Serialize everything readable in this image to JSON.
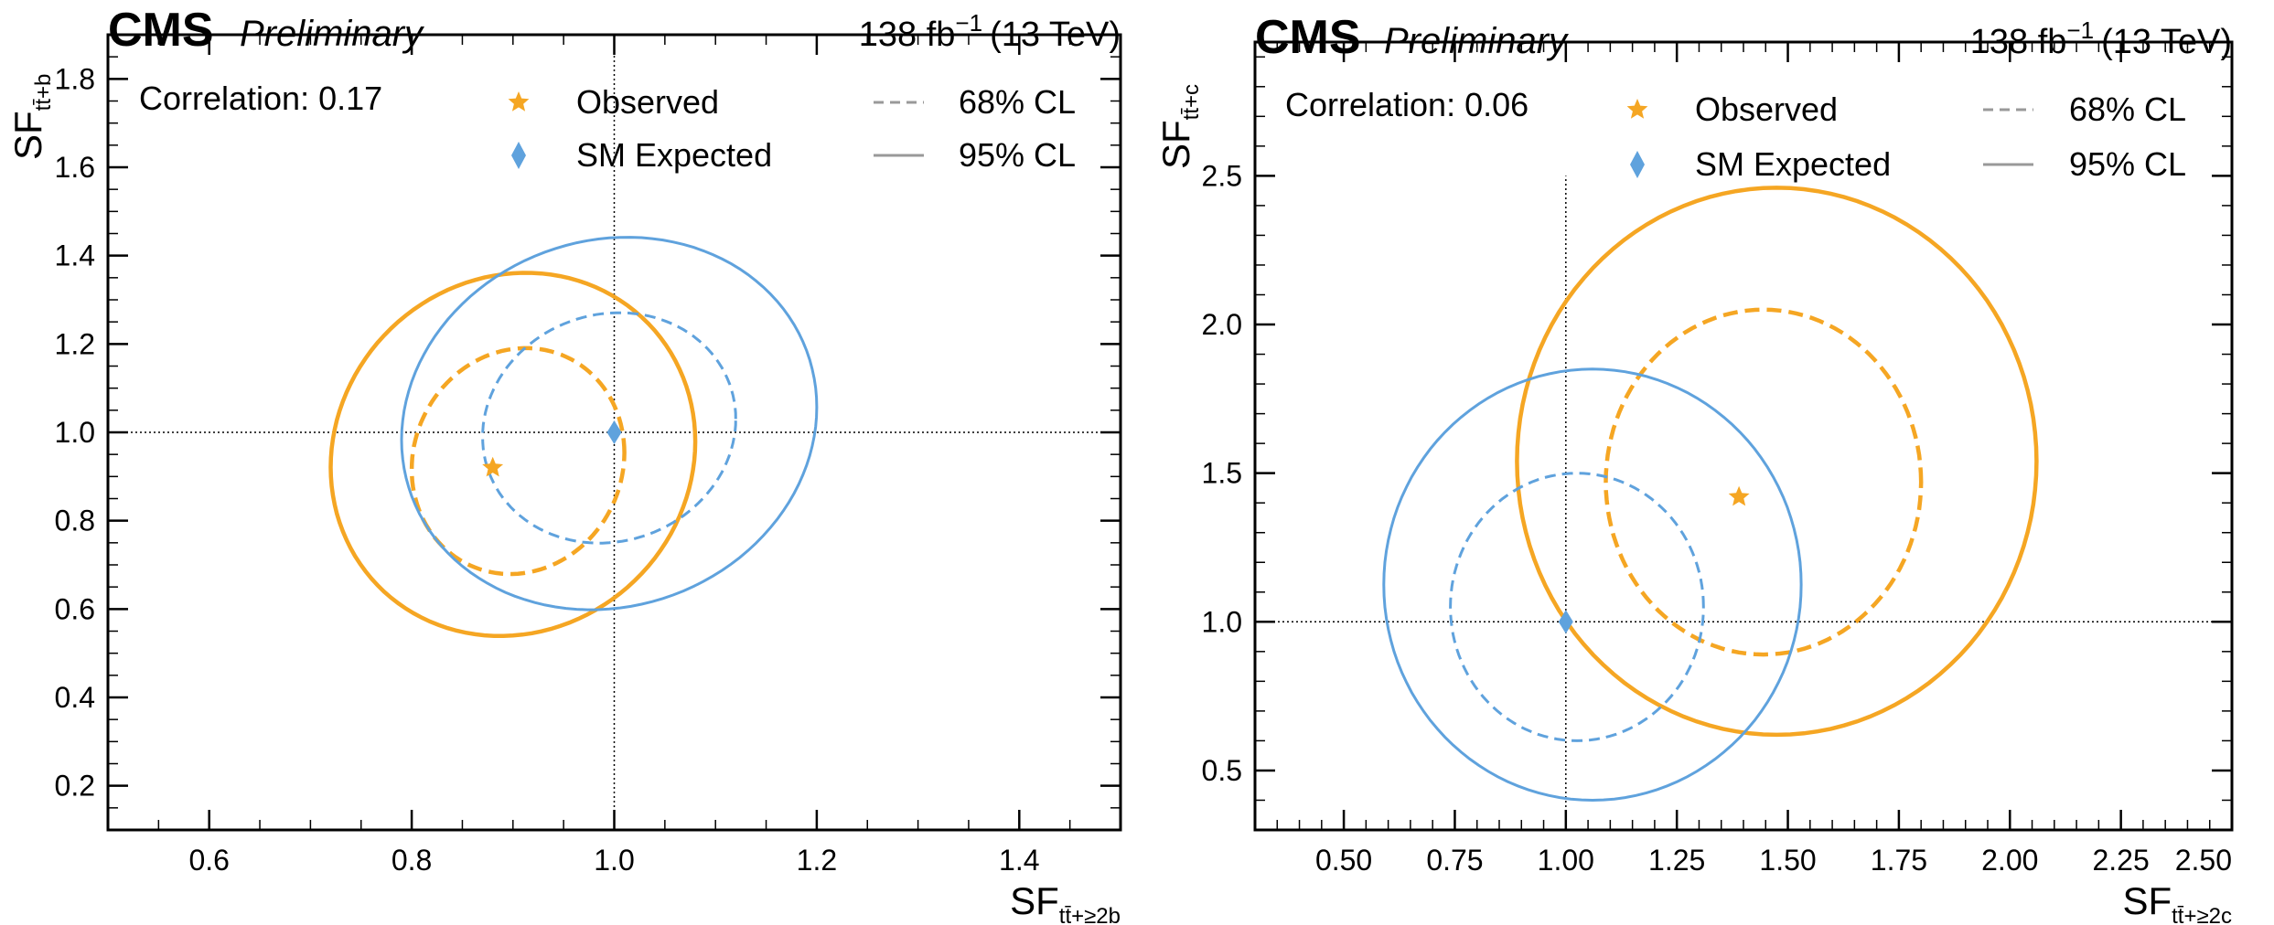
{
  "colors": {
    "observed": "#f5a623",
    "expected": "#5fa2dd",
    "legend_line": "#999999",
    "frame": "#000000"
  },
  "chart_data": [
    {
      "type": "scatter",
      "experiment": "CMS",
      "status": "Preliminary",
      "lumi": "138 fb",
      "lumi_exp": "−1",
      "energy": "(13 TeV)",
      "correlation": "Correlation: 0.17",
      "xlabel": "SF",
      "xlabel_sub": "tt̄+≥2b",
      "ylabel": "SF",
      "ylabel_sub": "tt̄+b",
      "xlim": [
        0.5,
        1.5
      ],
      "ylim": [
        0.1,
        1.9
      ],
      "xticks": [
        0.6,
        0.8,
        1.0,
        1.2,
        1.4
      ],
      "xtick_labels": [
        "0.6",
        "0.8",
        "1.0",
        "1.2",
        "1.4"
      ],
      "xminor_step": 0.05,
      "yticks": [
        0.2,
        0.4,
        0.6,
        0.8,
        1.0,
        1.2,
        1.4,
        1.6,
        1.8
      ],
      "ytick_labels": [
        "0.2",
        "0.4",
        "0.6",
        "0.8",
        "1.0",
        "1.2",
        "1.4",
        "1.6",
        "1.8"
      ],
      "yminor_step": 0.05,
      "ref_x": 1.0,
      "ref_y": 1.0,
      "observed": {
        "x": 0.88,
        "y": 0.92
      },
      "expected": {
        "x": 1.0,
        "y": 1.0
      },
      "contours": [
        {
          "name": "Observed 68% CL",
          "series": "observed",
          "style": "dashed",
          "width": 4.5,
          "center": [
            0.91,
            0.93
          ],
          "xrange": [
            0.8,
            1.01
          ],
          "yrange": [
            0.68,
            1.19
          ],
          "tilt": 0.2
        },
        {
          "name": "Observed 95% CL",
          "series": "observed",
          "style": "solid",
          "width": 4.5,
          "center": [
            0.905,
            0.95
          ],
          "xrange": [
            0.72,
            1.08
          ],
          "yrange": [
            0.54,
            1.36
          ],
          "tilt": 0.18
        },
        {
          "name": "SM Expected 68% CL",
          "series": "expected",
          "style": "dashed",
          "width": 3,
          "center": [
            0.985,
            1.005
          ],
          "xrange": [
            0.87,
            1.12
          ],
          "yrange": [
            0.75,
            1.27
          ],
          "tilt": 0.18
        },
        {
          "name": "SM Expected 95% CL",
          "series": "expected",
          "style": "solid",
          "width": 3,
          "center": [
            0.985,
            1.02
          ],
          "xrange": [
            0.79,
            1.2
          ],
          "yrange": [
            0.6,
            1.44
          ],
          "tilt": 0.2
        }
      ],
      "legend": {
        "observed": "Observed",
        "expected": "SM Expected",
        "cl68": "68% CL",
        "cl95": "95% CL"
      }
    },
    {
      "type": "scatter",
      "experiment": "CMS",
      "status": "Preliminary",
      "lumi": "138 fb",
      "lumi_exp": "−1",
      "energy": "(13 TeV)",
      "correlation": "Correlation: 0.06",
      "xlabel": "SF",
      "xlabel_sub": "tt̄+≥2c",
      "ylabel": "SF",
      "ylabel_sub": "tt̄+c",
      "xlim": [
        0.3,
        2.5
      ],
      "ylim": [
        0.3,
        2.95
      ],
      "xticks": [
        0.5,
        0.75,
        1.0,
        1.25,
        1.5,
        1.75,
        2.0,
        2.25,
        2.5
      ],
      "xtick_labels": [
        "0.50",
        "0.75",
        "1.00",
        "1.25",
        "1.50",
        "1.75",
        "2.00",
        "2.25",
        "2.50"
      ],
      "xminor_step": 0.05,
      "yticks": [
        0.5,
        1.0,
        1.5,
        2.0,
        2.5
      ],
      "ytick_labels": [
        "0.5",
        "1.0",
        "1.5",
        "2.0",
        "2.5"
      ],
      "yminor_step": 0.1,
      "ref_x": 1.0,
      "ref_y": 1.0,
      "ref_y_max": 2.5,
      "observed": {
        "x": 1.39,
        "y": 1.42
      },
      "expected": {
        "x": 1.0,
        "y": 1.0
      },
      "contours": [
        {
          "name": "Observed 68% CL",
          "series": "observed",
          "style": "dashed",
          "width": 4.5,
          "center": [
            1.45,
            1.47
          ],
          "xrange": [
            1.09,
            1.8
          ],
          "yrange": [
            0.89,
            2.05
          ],
          "tilt": 0.0
        },
        {
          "name": "Observed 95% CL",
          "series": "observed",
          "style": "solid",
          "width": 4.5,
          "center": [
            1.55,
            1.54
          ],
          "xrange": [
            0.89,
            2.06
          ],
          "yrange": [
            0.62,
            2.46
          ],
          "tilt": 0.0
        },
        {
          "name": "SM Expected 68% CL",
          "series": "expected",
          "style": "dashed",
          "width": 3,
          "center": [
            1.02,
            1.05
          ],
          "xrange": [
            0.74,
            1.31
          ],
          "yrange": [
            0.6,
            1.5
          ],
          "tilt": 0.0
        },
        {
          "name": "SM Expected 95% CL",
          "series": "expected",
          "style": "solid",
          "width": 3,
          "center": [
            1.05,
            1.13
          ],
          "xrange": [
            0.59,
            1.53
          ],
          "yrange": [
            0.4,
            1.85
          ],
          "tilt": 0.0
        }
      ],
      "legend": {
        "observed": "Observed",
        "expected": "SM Expected",
        "cl68": "68% CL",
        "cl95": "95% CL"
      }
    }
  ]
}
